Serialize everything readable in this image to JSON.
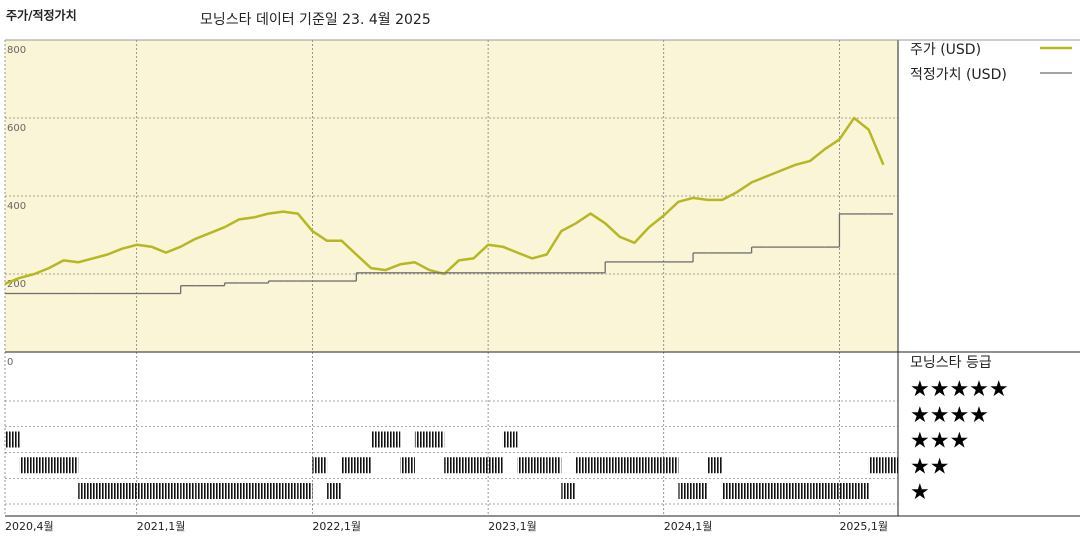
{
  "title": "주가/적정가치",
  "subtitle": "모닝스타 데이터 기준일 23. 4월 2025",
  "chart_data": [
    {
      "type": "line",
      "x": [
        "2020-04",
        "2020-05",
        "2020-06",
        "2020-07",
        "2020-08",
        "2020-09",
        "2020-10",
        "2020-11",
        "2020-12",
        "2021-01",
        "2021-02",
        "2021-03",
        "2021-04",
        "2021-05",
        "2021-06",
        "2021-07",
        "2021-08",
        "2021-09",
        "2021-10",
        "2021-11",
        "2021-12",
        "2022-01",
        "2022-02",
        "2022-03",
        "2022-04",
        "2022-05",
        "2022-06",
        "2022-07",
        "2022-08",
        "2022-09",
        "2022-10",
        "2022-11",
        "2022-12",
        "2023-01",
        "2023-02",
        "2023-03",
        "2023-04",
        "2023-05",
        "2023-06",
        "2023-07",
        "2023-08",
        "2023-09",
        "2023-10",
        "2023-11",
        "2023-12",
        "2024-01",
        "2024-02",
        "2024-03",
        "2024-04",
        "2024-05",
        "2024-06",
        "2024-07",
        "2024-08",
        "2024-09",
        "2024-10",
        "2024-11",
        "2024-12",
        "2025-01",
        "2025-02",
        "2025-03",
        "2025-04"
      ],
      "series": [
        {
          "name": "주가 (USD)",
          "color": "#b7b722",
          "values": [
            175,
            190,
            200,
            215,
            235,
            230,
            240,
            250,
            265,
            275,
            270,
            255,
            270,
            290,
            305,
            320,
            340,
            345,
            355,
            360,
            355,
            310,
            285,
            285,
            250,
            215,
            210,
            225,
            230,
            210,
            200,
            235,
            240,
            275,
            270,
            255,
            240,
            250,
            310,
            330,
            355,
            330,
            295,
            280,
            320,
            350,
            385,
            395,
            390,
            390,
            410,
            435,
            450,
            465,
            480,
            490,
            520,
            545,
            600,
            570,
            480
          ]
        },
        {
          "name": "적정가치 (USD)",
          "color": "#6e6e6e",
          "step": true,
          "values": [
            150,
            150,
            150,
            150,
            150,
            150,
            150,
            150,
            150,
            150,
            150,
            150,
            170,
            170,
            170,
            177,
            177,
            177,
            182,
            182,
            182,
            182,
            182,
            182,
            203,
            203,
            203,
            203,
            203,
            203,
            203,
            203,
            203,
            203,
            203,
            203,
            203,
            203,
            203,
            203,
            203,
            231,
            231,
            231,
            231,
            231,
            231,
            254,
            254,
            254,
            254,
            269,
            269,
            269,
            269,
            269,
            269,
            354,
            354,
            354,
            354
          ]
        }
      ],
      "xlim": [
        "2020-04",
        "2025-05"
      ],
      "xticks": [
        {
          "value": "2020-04",
          "label": "2020,4월"
        },
        {
          "value": "2021-01",
          "label": "2021,1월"
        },
        {
          "value": "2022-01",
          "label": "2022,1월"
        },
        {
          "value": "2023-01",
          "label": "2023,1월"
        },
        {
          "value": "2024-01",
          "label": "2024,1월"
        },
        {
          "value": "2025-01",
          "label": "2025,1월"
        }
      ],
      "ylim": [
        0,
        800
      ],
      "yticks": [
        0,
        200,
        400,
        600,
        800
      ],
      "grid": true,
      "legend": "right",
      "background": "#f9f5d6"
    },
    {
      "type": "rating",
      "title": "모닝스타 등급",
      "levels": [
        5,
        4,
        3,
        2,
        1
      ],
      "level_labels": [
        "★★★★★",
        "★★★★",
        "★★★",
        "★★",
        "★"
      ],
      "values": [
        3,
        2,
        2,
        2,
        2,
        1,
        1,
        1,
        1,
        1,
        1,
        1,
        1,
        1,
        1,
        1,
        1,
        1,
        1,
        1,
        1,
        2,
        1,
        2,
        2,
        3,
        3,
        2,
        3,
        3,
        2,
        2,
        2,
        2,
        3,
        2,
        2,
        2,
        1,
        2,
        2,
        2,
        2,
        2,
        2,
        2,
        1,
        1,
        2,
        1,
        1,
        1,
        1,
        1,
        1,
        1,
        1,
        1,
        1,
        2,
        2
      ]
    }
  ]
}
